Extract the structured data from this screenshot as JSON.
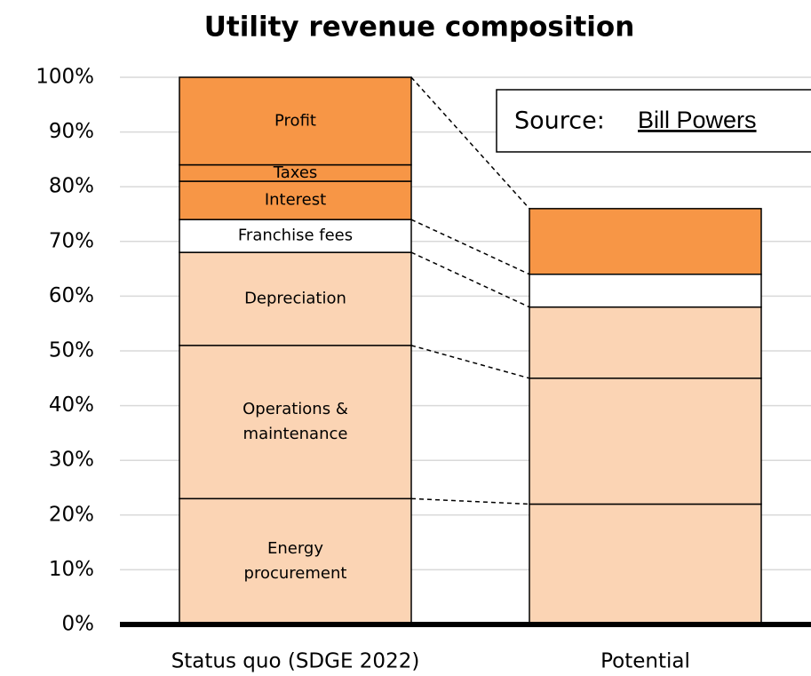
{
  "chart_data": {
    "type": "stacked_bar",
    "title": "Utility revenue composition",
    "categories": [
      "Status quo (SDGE 2022)",
      "Potential"
    ],
    "series": [
      {
        "name": "Energy\nprocurement",
        "color": "#fbd4b4",
        "values": [
          23,
          22
        ]
      },
      {
        "name": "Operations &\nmaintenance",
        "color": "#fbd4b4",
        "values": [
          28,
          23
        ]
      },
      {
        "name": "Depreciation",
        "color": "#fbd4b4",
        "values": [
          17,
          13
        ]
      },
      {
        "name": "Franchise fees",
        "color": "#ffffff",
        "values": [
          6,
          6
        ]
      },
      {
        "name": "Interest",
        "color": "#f79646",
        "values": [
          7,
          null
        ]
      },
      {
        "name": "Taxes",
        "color": "#f79646",
        "values": [
          3,
          null
        ]
      },
      {
        "name": "Profit",
        "color": "#f79646",
        "values": [
          16,
          12
        ]
      }
    ],
    "ylim": [
      0,
      100
    ],
    "yticks": [
      {
        "value": 0,
        "label": "0%"
      },
      {
        "value": 10,
        "label": "10%"
      },
      {
        "value": 20,
        "label": "20%"
      },
      {
        "value": 30,
        "label": "30%"
      },
      {
        "value": 40,
        "label": "40%"
      },
      {
        "value": 50,
        "label": "50%"
      },
      {
        "value": 60,
        "label": "60%"
      },
      {
        "value": 70,
        "label": "70%"
      },
      {
        "value": 80,
        "label": "80%"
      },
      {
        "value": 90,
        "label": "90%"
      },
      {
        "value": 100,
        "label": "100%"
      }
    ],
    "grid": true,
    "source_label": "Source:",
    "source_link": "Bill Powers"
  }
}
